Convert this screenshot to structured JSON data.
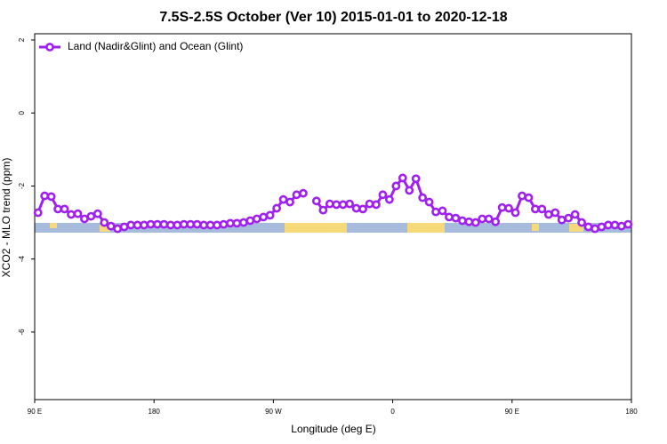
{
  "chart_data": {
    "type": "line",
    "title": "7.5S-2.5S October (Ver 10)   2015-01-01 to 2020-12-18",
    "xlabel": "Longitude (deg E)",
    "ylabel": "XCO2 - MLO trend (ppm)",
    "xlim": [
      90,
      540
    ],
    "xticks": [
      {
        "value": 90,
        "label": "90 E"
      },
      180,
      {
        "value": 270,
        "label": "90 W"
      },
      {
        "value": 360,
        "label": "0"
      },
      {
        "value": 450,
        "label": "90 E"
      },
      {
        "value": 540,
        "label": "180"
      }
    ],
    "ylim": [
      -7.85,
      2.17
    ],
    "yticks": [
      2,
      0,
      -2,
      -4,
      -6
    ],
    "legend": "top-left",
    "x": [
      92.5,
      97.5,
      102.5,
      107.5,
      112.5,
      117.5,
      122.5,
      127.5,
      132.5,
      137.5,
      142.5,
      147.5,
      152.5,
      157.5,
      162.5,
      167.5,
      172.5,
      177.5,
      182.5,
      187.5,
      192.5,
      197.5,
      202.5,
      207.5,
      212.5,
      217.5,
      222.5,
      227.5,
      232.5,
      237.5,
      242.5,
      247.5,
      252.5,
      257.5,
      262.5,
      267.5,
      272.5,
      277.5,
      282.5,
      287.5,
      292.5,
      297.5,
      302.5,
      307.5,
      312.5,
      317.5,
      322.5,
      327.5,
      332.5,
      337.5,
      342.5,
      347.5,
      352.5,
      357.5,
      362.5,
      367.5,
      372.5,
      377.5,
      382.5,
      387.5,
      392.5,
      397.5,
      402.5,
      407.5,
      412.5,
      417.5,
      422.5,
      427.5,
      432.5,
      437.5,
      442.5,
      447.5,
      452.5,
      457.5,
      462.5,
      467.5,
      472.5,
      477.5,
      482.5,
      487.5,
      492.5,
      497.5,
      502.5,
      507.5,
      512.5,
      517.5,
      522.5,
      527.5,
      532.5,
      537.5
    ],
    "series": [
      {
        "name": "Land (Nadir&Glint) and Ocean (Glint)",
        "color": "#a020f0",
        "values": [
          -2.73,
          -2.27,
          -2.29,
          -2.63,
          -2.63,
          -2.78,
          -2.76,
          -2.9,
          -2.83,
          -2.76,
          -3.0,
          -3.1,
          -3.17,
          -3.12,
          -3.07,
          -3.07,
          -3.07,
          -3.05,
          -3.05,
          -3.05,
          -3.07,
          -3.07,
          -3.05,
          -3.05,
          -3.05,
          -3.07,
          -3.07,
          -3.07,
          -3.05,
          -3.02,
          -3.02,
          -3.0,
          -2.95,
          -2.9,
          -2.85,
          -2.8,
          -2.61,
          -2.37,
          -2.44,
          -2.24,
          -2.2,
          null,
          -2.41,
          -2.66,
          -2.49,
          -2.51,
          -2.51,
          -2.49,
          -2.61,
          -2.63,
          -2.49,
          -2.51,
          -2.24,
          -2.37,
          -2.0,
          -1.78,
          -2.12,
          -1.8,
          -2.32,
          -2.44,
          -2.71,
          -2.68,
          -2.85,
          -2.88,
          -2.95,
          -2.98,
          -3.0,
          -2.9,
          -2.9,
          -2.98,
          -2.59,
          -2.61,
          -2.73,
          -2.27,
          -2.32,
          -2.63,
          -2.63,
          -2.78,
          -2.73,
          -2.93,
          -2.88,
          -2.78,
          -3.0,
          -3.12,
          -3.17,
          -3.12,
          -3.07,
          -3.07,
          -3.1,
          -3.05
        ]
      }
    ]
  }
}
